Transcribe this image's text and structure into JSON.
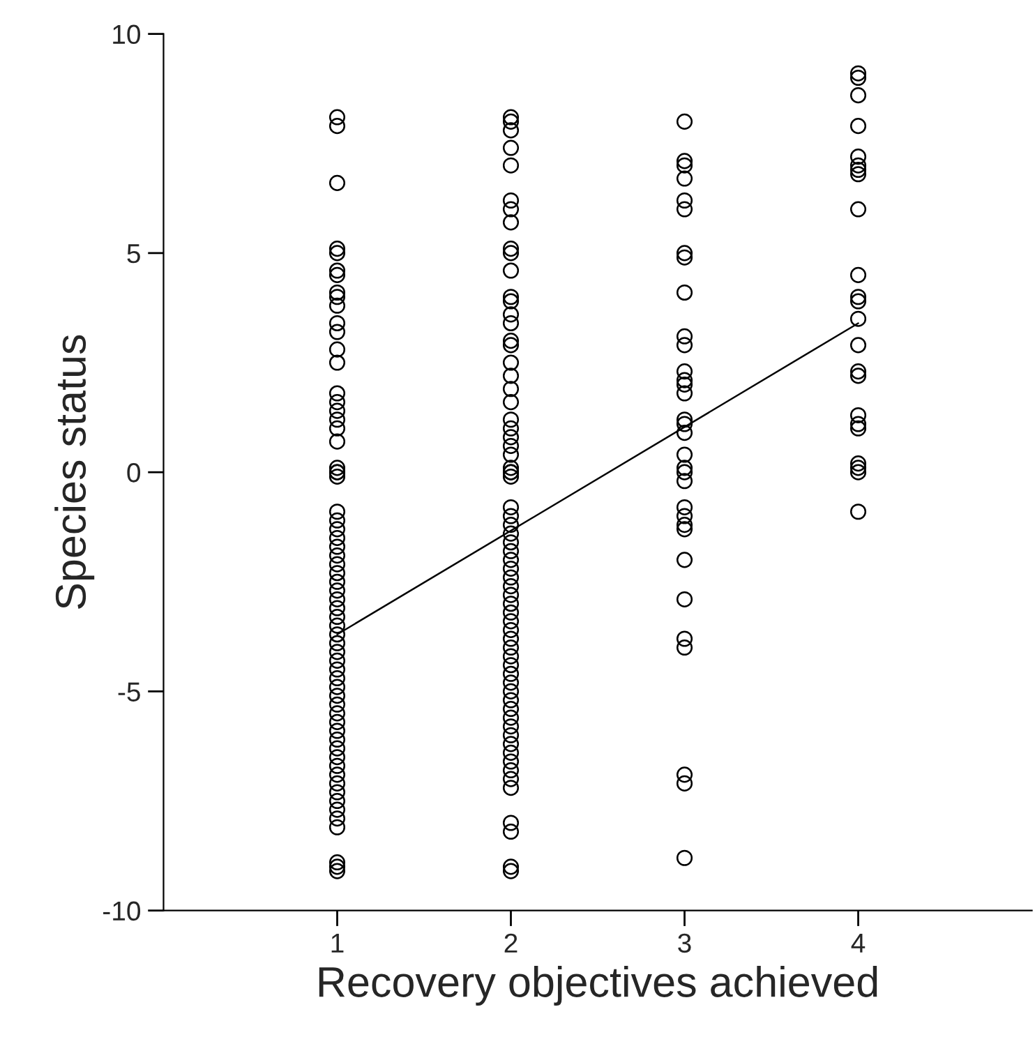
{
  "chart_data": {
    "type": "scatter",
    "xlabel": "Recovery objectives achieved",
    "ylabel": "Species status",
    "xlim": [
      0,
      5
    ],
    "xticks": [
      1,
      2,
      3,
      4
    ],
    "ylim": [
      -10,
      10
    ],
    "yticks": [
      -10,
      -5,
      0,
      5,
      10
    ],
    "grid": false,
    "marker": "circle",
    "series": [
      {
        "color": "#000000",
        "x": [
          1,
          1,
          1,
          1,
          1,
          1,
          1,
          1,
          1,
          1,
          1,
          1,
          1,
          1,
          1,
          1,
          1,
          1,
          1,
          1,
          1,
          1,
          1,
          1,
          1,
          1,
          1,
          1,
          1,
          1,
          1,
          1,
          1,
          1,
          1,
          1,
          1,
          1,
          1,
          1,
          1,
          1,
          1,
          1,
          1,
          1,
          1,
          1,
          1,
          1,
          1,
          1,
          1,
          1,
          1,
          1,
          1,
          1,
          1,
          1,
          1,
          1,
          1,
          1
        ],
        "values": [
          8.1,
          7.9,
          6.6,
          5.1,
          5.0,
          4.6,
          4.5,
          4.1,
          4.0,
          3.8,
          3.4,
          3.2,
          2.8,
          2.5,
          1.8,
          1.6,
          1.4,
          1.2,
          1.0,
          0.7,
          0.1,
          0.0,
          0.0,
          -0.1,
          -0.9,
          -1.1,
          -1.3,
          -1.5,
          -1.7,
          -1.9,
          -2.1,
          -2.3,
          -2.5,
          -2.7,
          -2.9,
          -3.1,
          -3.3,
          -3.5,
          -3.7,
          -3.9,
          -4.1,
          -4.3,
          -4.5,
          -4.7,
          -4.9,
          -5.1,
          -5.3,
          -5.5,
          -5.7,
          -5.9,
          -6.1,
          -6.3,
          -6.5,
          -6.7,
          -6.9,
          -7.1,
          -7.3,
          -7.5,
          -7.7,
          -7.9,
          -8.1,
          -8.9,
          -9.0,
          -9.1
        ]
      },
      {
        "color": "#000000",
        "x": [
          2,
          2,
          2,
          2,
          2,
          2,
          2,
          2,
          2,
          2,
          2,
          2,
          2,
          2,
          2,
          2,
          2,
          2,
          2,
          2,
          2,
          2,
          2,
          2,
          2,
          2,
          2,
          2,
          2,
          2,
          2,
          2,
          2,
          2,
          2,
          2,
          2,
          2,
          2,
          2,
          2,
          2,
          2,
          2,
          2,
          2,
          2,
          2,
          2,
          2,
          2,
          2,
          2,
          2,
          2,
          2,
          2,
          2,
          2,
          2,
          2,
          2,
          2,
          2,
          2,
          2,
          2
        ],
        "values": [
          8.1,
          8.0,
          7.8,
          7.4,
          7.0,
          6.2,
          6.0,
          5.7,
          5.1,
          5.0,
          4.6,
          4.0,
          3.9,
          3.6,
          3.4,
          3.0,
          2.9,
          2.5,
          2.2,
          1.9,
          1.6,
          1.2,
          1.0,
          0.8,
          0.6,
          0.4,
          0.1,
          0.0,
          0.0,
          -0.1,
          -0.8,
          -1.0,
          -1.2,
          -1.4,
          -1.6,
          -1.8,
          -2.0,
          -2.2,
          -2.4,
          -2.6,
          -2.8,
          -3.0,
          -3.2,
          -3.4,
          -3.6,
          -3.8,
          -4.0,
          -4.2,
          -4.4,
          -4.6,
          -4.8,
          -5.0,
          -5.2,
          -5.4,
          -5.6,
          -5.8,
          -6.0,
          -6.2,
          -6.4,
          -6.6,
          -6.8,
          -7.0,
          -7.2,
          -8.0,
          -8.2,
          -9.0,
          -9.1
        ]
      },
      {
        "color": "#000000",
        "x": [
          3,
          3,
          3,
          3,
          3,
          3,
          3,
          3,
          3,
          3,
          3,
          3,
          3,
          3,
          3,
          3,
          3,
          3,
          3,
          3,
          3,
          3,
          3,
          3,
          3,
          3,
          3,
          3,
          3,
          3,
          3,
          3,
          3
        ],
        "values": [
          8.0,
          7.1,
          7.0,
          6.7,
          6.2,
          6.0,
          5.0,
          4.9,
          4.1,
          3.1,
          2.9,
          2.3,
          2.1,
          2.0,
          1.8,
          1.2,
          1.1,
          0.9,
          0.4,
          0.1,
          0.0,
          -0.2,
          -0.8,
          -1.0,
          -1.2,
          -1.3,
          -2.0,
          -2.9,
          -3.8,
          -4.0,
          -6.9,
          -7.1,
          -8.8
        ]
      },
      {
        "color": "#000000",
        "x": [
          4,
          4,
          4,
          4,
          4,
          4,
          4,
          4,
          4,
          4,
          4,
          4,
          4,
          4,
          4,
          4,
          4,
          4,
          4,
          4,
          4,
          4,
          4
        ],
        "values": [
          9.1,
          9.0,
          8.6,
          7.9,
          7.2,
          7.0,
          6.9,
          6.8,
          6.0,
          4.5,
          4.0,
          3.9,
          3.5,
          2.9,
          2.3,
          2.2,
          1.3,
          1.1,
          1.0,
          0.2,
          0.1,
          0.0,
          -0.9
        ]
      },
      {
        "type": "line",
        "color": "#000000",
        "x": [
          1,
          4
        ],
        "values": [
          -3.7,
          3.4
        ],
        "marker": "none",
        "line_style": "solid"
      }
    ]
  }
}
